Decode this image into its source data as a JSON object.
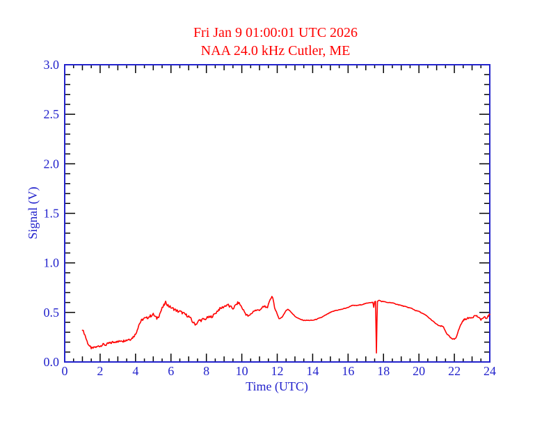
{
  "chart_data": {
    "type": "line",
    "title_line1": "Fri Jan 9 01:00:01 UTC 2026",
    "title_line2": "NAA 24.0 kHz Cutler, ME",
    "xlabel": "Time (UTC)",
    "ylabel": "Signal (V)",
    "xlim": [
      0,
      24
    ],
    "ylim": [
      0.0,
      3.0
    ],
    "grid": false,
    "legend": "none",
    "x_major_step": 2,
    "x_medium_step": 1,
    "x_minor_step": 0.5,
    "y_major_step": 0.5,
    "y_minor_step": 0.1,
    "x_ticks": [
      [
        0,
        "0"
      ],
      [
        2,
        "2"
      ],
      [
        4,
        "4"
      ],
      [
        6,
        "6"
      ],
      [
        8,
        "8"
      ],
      [
        10,
        "10"
      ],
      [
        12,
        "12"
      ],
      [
        14,
        "14"
      ],
      [
        16,
        "16"
      ],
      [
        18,
        "18"
      ],
      [
        20,
        "20"
      ],
      [
        22,
        "22"
      ],
      [
        24,
        "24"
      ]
    ],
    "y_ticks": [
      [
        0.0,
        "0.0"
      ],
      [
        0.5,
        "0.5"
      ],
      [
        1.0,
        "1.0"
      ],
      [
        1.5,
        "1.5"
      ],
      [
        2.0,
        "2.0"
      ],
      [
        2.5,
        "2.5"
      ],
      [
        3.0,
        "3.0"
      ]
    ],
    "colors": {
      "title": "#ff0000",
      "series": "#ff0000",
      "axis_frame": "#2222cc",
      "axis_text": "#2222cc",
      "ticks": "#000000",
      "background": "#ffffff"
    },
    "series": [
      {
        "name": "NAA 24.0 kHz signal",
        "color": "#ff0000",
        "points": [
          [
            1.0,
            0.33
          ],
          [
            1.05,
            0.31
          ],
          [
            1.1,
            0.29
          ],
          [
            1.15,
            0.27
          ],
          [
            1.2,
            0.24
          ],
          [
            1.3,
            0.19
          ],
          [
            1.4,
            0.16
          ],
          [
            1.5,
            0.14
          ],
          [
            1.6,
            0.14
          ],
          [
            1.7,
            0.15
          ],
          [
            1.8,
            0.15
          ],
          [
            1.9,
            0.16
          ],
          [
            2.0,
            0.16
          ],
          [
            2.1,
            0.17
          ],
          [
            2.2,
            0.18
          ],
          [
            2.3,
            0.17
          ],
          [
            2.4,
            0.18
          ],
          [
            2.5,
            0.19
          ],
          [
            2.6,
            0.19
          ],
          [
            2.7,
            0.2
          ],
          [
            2.8,
            0.2
          ],
          [
            2.9,
            0.21
          ],
          [
            3.0,
            0.2
          ],
          [
            3.1,
            0.21
          ],
          [
            3.2,
            0.22
          ],
          [
            3.3,
            0.21
          ],
          [
            3.4,
            0.22
          ],
          [
            3.5,
            0.22
          ],
          [
            3.6,
            0.23
          ],
          [
            3.7,
            0.23
          ],
          [
            3.8,
            0.24
          ],
          [
            3.9,
            0.26
          ],
          [
            4.0,
            0.28
          ],
          [
            4.1,
            0.33
          ],
          [
            4.2,
            0.38
          ],
          [
            4.3,
            0.41
          ],
          [
            4.4,
            0.43
          ],
          [
            4.5,
            0.44
          ],
          [
            4.6,
            0.44
          ],
          [
            4.7,
            0.45
          ],
          [
            4.8,
            0.46
          ],
          [
            4.9,
            0.47
          ],
          [
            5.0,
            0.48
          ],
          [
            5.1,
            0.46
          ],
          [
            5.2,
            0.44
          ],
          [
            5.3,
            0.46
          ],
          [
            5.4,
            0.5
          ],
          [
            5.5,
            0.54
          ],
          [
            5.6,
            0.57
          ],
          [
            5.7,
            0.6
          ],
          [
            5.8,
            0.58
          ],
          [
            5.9,
            0.56
          ],
          [
            6.0,
            0.55
          ],
          [
            6.1,
            0.54
          ],
          [
            6.2,
            0.53
          ],
          [
            6.3,
            0.52
          ],
          [
            6.4,
            0.51
          ],
          [
            6.5,
            0.51
          ],
          [
            6.6,
            0.5
          ],
          [
            6.7,
            0.49
          ],
          [
            6.8,
            0.48
          ],
          [
            6.9,
            0.47
          ],
          [
            7.0,
            0.46
          ],
          [
            7.1,
            0.44
          ],
          [
            7.2,
            0.41
          ],
          [
            7.3,
            0.39
          ],
          [
            7.4,
            0.38
          ],
          [
            7.5,
            0.4
          ],
          [
            7.6,
            0.42
          ],
          [
            7.7,
            0.42
          ],
          [
            7.8,
            0.43
          ],
          [
            7.9,
            0.43
          ],
          [
            8.0,
            0.44
          ],
          [
            8.1,
            0.45
          ],
          [
            8.2,
            0.45
          ],
          [
            8.3,
            0.46
          ],
          [
            8.4,
            0.47
          ],
          [
            8.5,
            0.49
          ],
          [
            8.6,
            0.51
          ],
          [
            8.7,
            0.53
          ],
          [
            8.8,
            0.54
          ],
          [
            8.9,
            0.55
          ],
          [
            9.0,
            0.56
          ],
          [
            9.1,
            0.57
          ],
          [
            9.2,
            0.58
          ],
          [
            9.3,
            0.56
          ],
          [
            9.4,
            0.55
          ],
          [
            9.5,
            0.54
          ],
          [
            9.6,
            0.56
          ],
          [
            9.7,
            0.58
          ],
          [
            9.8,
            0.6
          ],
          [
            9.9,
            0.58
          ],
          [
            10.0,
            0.55
          ],
          [
            10.1,
            0.52
          ],
          [
            10.2,
            0.49
          ],
          [
            10.3,
            0.47
          ],
          [
            10.4,
            0.46
          ],
          [
            10.5,
            0.48
          ],
          [
            10.6,
            0.5
          ],
          [
            10.7,
            0.52
          ],
          [
            10.8,
            0.52
          ],
          [
            10.9,
            0.52
          ],
          [
            11.0,
            0.53
          ],
          [
            11.1,
            0.54
          ],
          [
            11.2,
            0.55
          ],
          [
            11.3,
            0.56
          ],
          [
            11.4,
            0.55
          ],
          [
            11.5,
            0.57
          ],
          [
            11.6,
            0.62
          ],
          [
            11.7,
            0.67
          ],
          [
            11.75,
            0.65
          ],
          [
            11.8,
            0.6
          ],
          [
            11.9,
            0.52
          ],
          [
            12.0,
            0.47
          ],
          [
            12.1,
            0.45
          ],
          [
            12.2,
            0.44
          ],
          [
            12.3,
            0.46
          ],
          [
            12.4,
            0.49
          ],
          [
            12.5,
            0.52
          ],
          [
            12.6,
            0.53
          ],
          [
            12.7,
            0.52
          ],
          [
            12.8,
            0.5
          ],
          [
            12.9,
            0.48
          ],
          [
            13.0,
            0.46
          ],
          [
            13.1,
            0.45
          ],
          [
            13.2,
            0.44
          ],
          [
            13.3,
            0.43
          ],
          [
            13.5,
            0.42
          ],
          [
            13.8,
            0.42
          ],
          [
            14.0,
            0.42
          ],
          [
            14.2,
            0.43
          ],
          [
            14.5,
            0.45
          ],
          [
            14.8,
            0.48
          ],
          [
            15.0,
            0.5
          ],
          [
            15.3,
            0.52
          ],
          [
            15.6,
            0.53
          ],
          [
            16.0,
            0.55
          ],
          [
            16.2,
            0.57
          ],
          [
            16.5,
            0.57
          ],
          [
            16.8,
            0.58
          ],
          [
            17.0,
            0.59
          ],
          [
            17.2,
            0.6
          ],
          [
            17.4,
            0.6
          ],
          [
            17.45,
            0.55
          ],
          [
            17.5,
            0.61
          ],
          [
            17.55,
            0.61
          ],
          [
            17.58,
            0.3
          ],
          [
            17.6,
            0.09
          ],
          [
            17.63,
            0.4
          ],
          [
            17.66,
            0.61
          ],
          [
            17.7,
            0.62
          ],
          [
            17.8,
            0.62
          ],
          [
            17.9,
            0.61
          ],
          [
            18.0,
            0.61
          ],
          [
            18.2,
            0.6
          ],
          [
            18.4,
            0.6
          ],
          [
            18.6,
            0.59
          ],
          [
            18.8,
            0.58
          ],
          [
            19.0,
            0.57
          ],
          [
            19.2,
            0.56
          ],
          [
            19.4,
            0.55
          ],
          [
            19.6,
            0.54
          ],
          [
            19.8,
            0.52
          ],
          [
            20.0,
            0.51
          ],
          [
            20.2,
            0.49
          ],
          [
            20.4,
            0.47
          ],
          [
            20.6,
            0.44
          ],
          [
            20.8,
            0.41
          ],
          [
            21.0,
            0.38
          ],
          [
            21.2,
            0.36
          ],
          [
            21.35,
            0.36
          ],
          [
            21.5,
            0.31
          ],
          [
            21.6,
            0.28
          ],
          [
            21.7,
            0.26
          ],
          [
            21.8,
            0.24
          ],
          [
            21.9,
            0.23
          ],
          [
            22.0,
            0.23
          ],
          [
            22.1,
            0.25
          ],
          [
            22.2,
            0.3
          ],
          [
            22.3,
            0.35
          ],
          [
            22.4,
            0.39
          ],
          [
            22.5,
            0.42
          ],
          [
            22.6,
            0.43
          ],
          [
            22.7,
            0.44
          ],
          [
            22.8,
            0.44
          ],
          [
            22.9,
            0.45
          ],
          [
            23.0,
            0.45
          ],
          [
            23.1,
            0.46
          ],
          [
            23.2,
            0.47
          ],
          [
            23.3,
            0.46
          ],
          [
            23.4,
            0.44
          ],
          [
            23.5,
            0.43
          ],
          [
            23.6,
            0.44
          ],
          [
            23.7,
            0.45
          ],
          [
            23.8,
            0.44
          ],
          [
            23.9,
            0.46
          ],
          [
            24.0,
            0.48
          ]
        ]
      }
    ],
    "noise_segments": [
      [
        1.0,
        2.2,
        0.01
      ],
      [
        2.2,
        4.05,
        0.012
      ],
      [
        4.05,
        12.3,
        0.014
      ],
      [
        12.3,
        21.1,
        0.003
      ],
      [
        21.1,
        22.4,
        0.006
      ],
      [
        22.4,
        24.01,
        0.009
      ]
    ]
  }
}
